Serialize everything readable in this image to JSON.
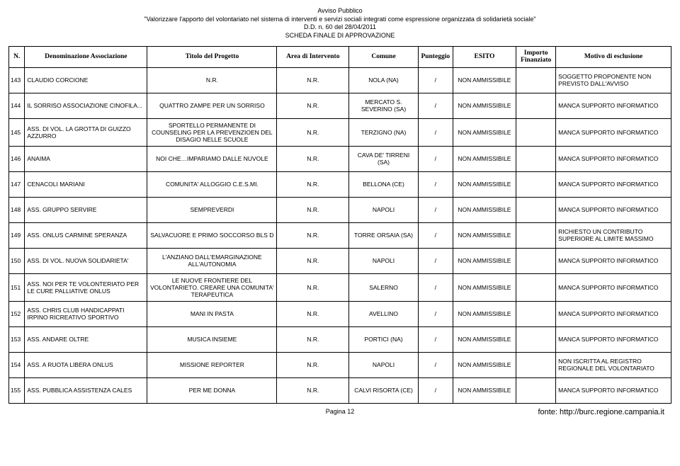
{
  "header": {
    "line1": "Avviso Pubblico",
    "line2": "\"Valorizzare l'apporto del volontariato nel sistema di interventi e servizi sociali integrati come espressione organizzata di solidarietà sociale\"",
    "line3": "D.D. n. 60 del 28/04/2011",
    "line4": "SCHEDA FINALE DI APPROVAZIONE"
  },
  "columns": {
    "n": "N.",
    "den": "Denominazione Associazione",
    "tit": "Titolo del Progetto",
    "area": "Area di Intervento",
    "com": "Comune",
    "pun": "Punteggio",
    "esi": "ESITO",
    "imp": "Importo Finanziato",
    "mot": "Motivo di esclusione"
  },
  "rows": [
    {
      "n": "143",
      "den": "CLAUDIO CORCIONE",
      "tit": "N.R.",
      "area": "N.R.",
      "com": "NOLA (NA)",
      "pun": "/",
      "esi": "NON AMMISSIBILE",
      "imp": "",
      "mot": "SOGGETTO PROPONENTE NON PREVISTO DALL'AVVISO"
    },
    {
      "n": "144",
      "den": "IL SORRISO ASSOCIAZIONE CINOFILA...",
      "tit": "QUATTRO ZAMPE PER UN SORRISO",
      "area": "N.R.",
      "com": "MERCATO S. SEVERINO (SA)",
      "pun": "/",
      "esi": "NON AMMISSIBILE",
      "imp": "",
      "mot": "MANCA SUPPORTO INFORMATICO"
    },
    {
      "n": "145",
      "den": "ASS. DI VOL. LA GROTTA DI GUIZZO AZZURRO",
      "tit": "SPORTELLO PERMANENTE DI COUNSELING PER LA PREVENZIOEN DEL DISAGIO NELLE SCUOLE",
      "area": "N.R.",
      "com": "TERZIGNO (NA)",
      "pun": "/",
      "esi": "NON AMMISSIBILE",
      "imp": "",
      "mot": "MANCA SUPPORTO INFORMATICO"
    },
    {
      "n": "146",
      "den": "ANAIMA",
      "tit": "NOI CHE…IMPARIAMO DALLE NUVOLE",
      "area": "N.R.",
      "com": "CAVA DE' TIRRENI (SA)",
      "pun": "/",
      "esi": "NON AMMISSIBILE",
      "imp": "",
      "mot": "MANCA SUPPORTO INFORMATICO"
    },
    {
      "n": "147",
      "den": "CENACOLI MARIANI",
      "tit": "COMUNITA' ALLOGGIO C.E.S.MI.",
      "area": "N.R.",
      "com": "BELLONA (CE)",
      "pun": "/",
      "esi": "NON AMMISSIBILE",
      "imp": "",
      "mot": "MANCA SUPPORTO INFORMATICO"
    },
    {
      "n": "148",
      "den": "ASS. GRUPPO SERVIRE",
      "tit": "SEMPREVERDI",
      "area": "N.R.",
      "com": "NAPOLI",
      "pun": "/",
      "esi": "NON AMMISSIBILE",
      "imp": "",
      "mot": "MANCA SUPPORTO INFORMATICO"
    },
    {
      "n": "149",
      "den": "ASS. ONLUS CARMINE SPERANZA",
      "tit": "SALVACUORE E PRIMO SOCCORSO BLS D",
      "area": "N.R.",
      "com": "TORRE ORSAIA (SA)",
      "pun": "/",
      "esi": "NON AMMISSIBILE",
      "imp": "",
      "mot": "RICHIESTO UN CONTRIBUTO SUPERIORE AL LIMITE MASSIMO"
    },
    {
      "n": "150",
      "den": "ASS. DI VOL. NUOVA SOLIDARIETA'",
      "tit": "L'ANZIANO DALL'EMARGINAZIONE ALL'AUTONOMIA",
      "area": "N.R.",
      "com": "NAPOLI",
      "pun": "/",
      "esi": "NON AMMISSIBILE",
      "imp": "",
      "mot": "MANCA SUPPORTO INFORMATICO"
    },
    {
      "n": "151",
      "den": "ASS. NOI PER TE VOLONTERIATO PER LE CURE PALLIATIVE ONLUS",
      "tit": "LE NUOVE FRONTIERE DEL VOLONTARIETO. CREARE UNA COMUNITA' TERAPEUTICA",
      "area": "N.R.",
      "com": "SALERNO",
      "pun": "/",
      "esi": "NON AMMISSIBILE",
      "imp": "",
      "mot": "MANCA SUPPORTO INFORMATICO"
    },
    {
      "n": "152",
      "den": "ASS. CHRIS CLUB HANDICAPPATI IRPINO RICREATIVO SPORTIVO",
      "tit": "MANI IN PASTA",
      "area": "N.R.",
      "com": "AVELLINO",
      "pun": "/",
      "esi": "NON AMMISSIBILE",
      "imp": "",
      "mot": "MANCA SUPPORTO INFORMATICO"
    },
    {
      "n": "153",
      "den": "ASS. ANDARE OLTRE",
      "tit": "MUSICA INSIEME",
      "area": "N.R.",
      "com": "PORTICI (NA)",
      "pun": "/",
      "esi": "NON AMMISSIBILE",
      "imp": "",
      "mot": "MANCA SUPPORTO INFORMATICO"
    },
    {
      "n": "154",
      "den": "ASS. A RUOTA LIBERA ONLUS",
      "tit": "MISSIONE REPORTER",
      "area": "N.R.",
      "com": "NAPOLI",
      "pun": "/",
      "esi": "NON AMMISSIBILE",
      "imp": "",
      "mot": "NON ISCRITTA AL REGISTRO REGIONALE DEL VOLONTARIATO"
    },
    {
      "n": "155",
      "den": "ASS. PUBBLICA ASSISTENZA CALES",
      "tit": "PER ME DONNA",
      "area": "N.R.",
      "com": "CALVI RISORTA (CE)",
      "pun": "/",
      "esi": "NON AMMISSIBILE",
      "imp": "",
      "mot": "MANCA SUPPORTO INFORMATICO"
    }
  ],
  "footer": {
    "page": "Pagina 12",
    "source": "fonte: http://burc.regione.campania.it"
  }
}
